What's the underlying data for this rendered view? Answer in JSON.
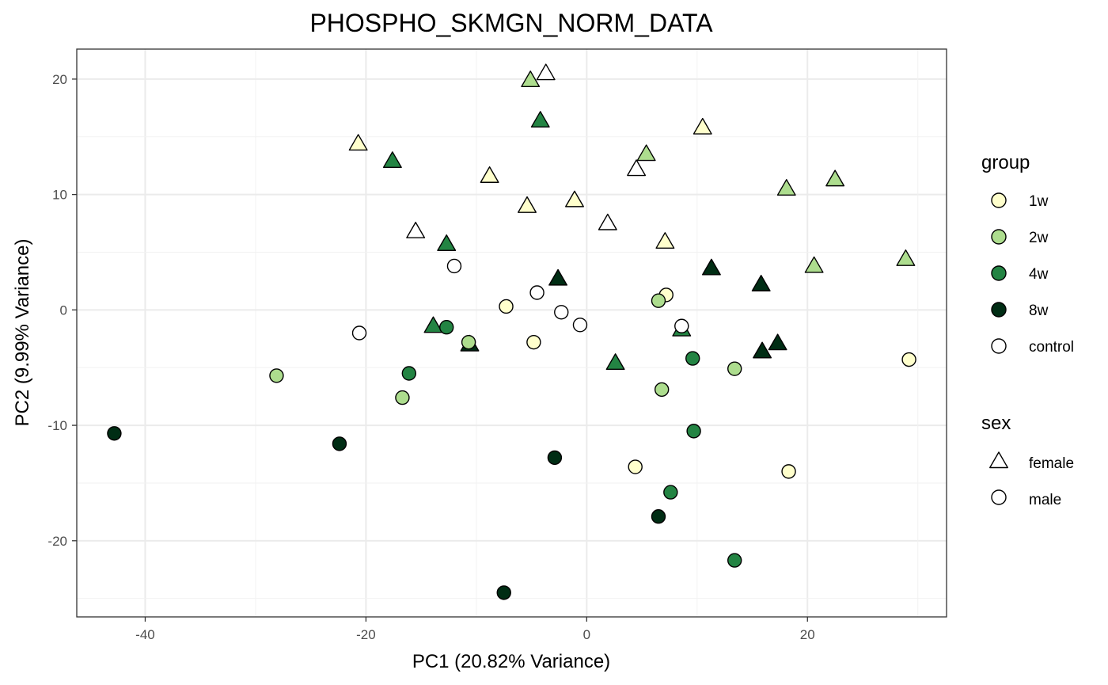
{
  "chart_data": {
    "type": "scatter",
    "title": "PHOSPHO_SKMGN_NORM_DATA",
    "xlabel": "PC1 (20.82% Variance)",
    "ylabel": "PC2 (9.99% Variance)",
    "xlim": [
      -46.2,
      32.6
    ],
    "ylim": [
      -26.6,
      22.6
    ],
    "x_ticks": [
      -40,
      -20,
      0,
      20
    ],
    "y_ticks": [
      -20,
      -10,
      0,
      10,
      20
    ],
    "x_tick_labels": [
      "-40",
      "-20",
      "0",
      "20"
    ],
    "y_tick_labels": [
      "-20",
      "-10",
      "0",
      "10",
      "20"
    ],
    "grid": true,
    "legend_position": "right",
    "legend": {
      "group": {
        "title": "group",
        "items": [
          {
            "key": "1w",
            "label": "1w",
            "color": "#ffffcc"
          },
          {
            "key": "2w",
            "label": "2w",
            "color": "#addd8e"
          },
          {
            "key": "4w",
            "label": "4w",
            "color": "#238443"
          },
          {
            "key": "8w",
            "label": "8w",
            "color": "#002d14"
          },
          {
            "key": "control",
            "label": "control",
            "color": "#ffffff"
          }
        ]
      },
      "sex": {
        "title": "sex",
        "items": [
          {
            "key": "female",
            "label": "female",
            "shape": "triangle"
          },
          {
            "key": "male",
            "label": "male",
            "shape": "circle"
          }
        ]
      }
    },
    "points": [
      {
        "x": -3.7,
        "y": 20.4,
        "group": "control",
        "sex": "female"
      },
      {
        "x": -5.1,
        "y": 19.8,
        "group": "2w",
        "sex": "female"
      },
      {
        "x": -4.2,
        "y": 16.3,
        "group": "4w",
        "sex": "female"
      },
      {
        "x": 10.5,
        "y": 15.7,
        "group": "1w",
        "sex": "female"
      },
      {
        "x": -20.7,
        "y": 14.3,
        "group": "1w",
        "sex": "female"
      },
      {
        "x": 5.4,
        "y": 13.4,
        "group": "2w",
        "sex": "female"
      },
      {
        "x": -17.6,
        "y": 12.8,
        "group": "4w",
        "sex": "female"
      },
      {
        "x": 4.5,
        "y": 12.1,
        "group": "control",
        "sex": "female"
      },
      {
        "x": -8.8,
        "y": 11.5,
        "group": "1w",
        "sex": "female"
      },
      {
        "x": 22.5,
        "y": 11.2,
        "group": "2w",
        "sex": "female"
      },
      {
        "x": 18.1,
        "y": 10.4,
        "group": "2w",
        "sex": "female"
      },
      {
        "x": -1.1,
        "y": 9.4,
        "group": "1w",
        "sex": "female"
      },
      {
        "x": -5.4,
        "y": 8.9,
        "group": "1w",
        "sex": "female"
      },
      {
        "x": 1.9,
        "y": 7.4,
        "group": "control",
        "sex": "female"
      },
      {
        "x": -15.5,
        "y": 6.7,
        "group": "control",
        "sex": "female"
      },
      {
        "x": 7.1,
        "y": 5.8,
        "group": "1w",
        "sex": "female"
      },
      {
        "x": -12.7,
        "y": 5.6,
        "group": "4w",
        "sex": "female"
      },
      {
        "x": 28.9,
        "y": 4.3,
        "group": "2w",
        "sex": "female"
      },
      {
        "x": 20.6,
        "y": 3.7,
        "group": "2w",
        "sex": "female"
      },
      {
        "x": 11.3,
        "y": 3.5,
        "group": "8w",
        "sex": "female"
      },
      {
        "x": -2.6,
        "y": 2.6,
        "group": "8w",
        "sex": "female"
      },
      {
        "x": 15.8,
        "y": 2.1,
        "group": "8w",
        "sex": "female"
      },
      {
        "x": -13.9,
        "y": -1.5,
        "group": "4w",
        "sex": "female"
      },
      {
        "x": 8.6,
        "y": -1.8,
        "group": "4w",
        "sex": "female"
      },
      {
        "x": 17.3,
        "y": -3.0,
        "group": "8w",
        "sex": "female"
      },
      {
        "x": -10.6,
        "y": -3.1,
        "group": "8w",
        "sex": "female"
      },
      {
        "x": 15.9,
        "y": -3.7,
        "group": "8w",
        "sex": "female"
      },
      {
        "x": 2.6,
        "y": -4.7,
        "group": "4w",
        "sex": "female"
      },
      {
        "x": -12.0,
        "y": 3.8,
        "group": "control",
        "sex": "male"
      },
      {
        "x": -4.5,
        "y": 1.5,
        "group": "control",
        "sex": "male"
      },
      {
        "x": -7.3,
        "y": 0.3,
        "group": "1w",
        "sex": "male"
      },
      {
        "x": 7.2,
        "y": 1.3,
        "group": "1w",
        "sex": "male"
      },
      {
        "x": 6.5,
        "y": 0.8,
        "group": "2w",
        "sex": "male"
      },
      {
        "x": -2.3,
        "y": -0.2,
        "group": "control",
        "sex": "male"
      },
      {
        "x": -0.6,
        "y": -1.3,
        "group": "control",
        "sex": "male"
      },
      {
        "x": 8.6,
        "y": -1.4,
        "group": "control",
        "sex": "male"
      },
      {
        "x": -12.7,
        "y": -1.5,
        "group": "4w",
        "sex": "male"
      },
      {
        "x": -20.6,
        "y": -2.0,
        "group": "control",
        "sex": "male"
      },
      {
        "x": -10.7,
        "y": -2.8,
        "group": "2w",
        "sex": "male"
      },
      {
        "x": -4.8,
        "y": -2.8,
        "group": "1w",
        "sex": "male"
      },
      {
        "x": 9.6,
        "y": -4.2,
        "group": "4w",
        "sex": "male"
      },
      {
        "x": 29.2,
        "y": -4.3,
        "group": "1w",
        "sex": "male"
      },
      {
        "x": 13.4,
        "y": -5.1,
        "group": "2w",
        "sex": "male"
      },
      {
        "x": -16.1,
        "y": -5.5,
        "group": "4w",
        "sex": "male"
      },
      {
        "x": -28.1,
        "y": -5.7,
        "group": "2w",
        "sex": "male"
      },
      {
        "x": 6.8,
        "y": -6.9,
        "group": "2w",
        "sex": "male"
      },
      {
        "x": -16.7,
        "y": -7.6,
        "group": "2w",
        "sex": "male"
      },
      {
        "x": 9.7,
        "y": -10.5,
        "group": "4w",
        "sex": "male"
      },
      {
        "x": -42.8,
        "y": -10.7,
        "group": "8w",
        "sex": "male"
      },
      {
        "x": -22.4,
        "y": -11.6,
        "group": "8w",
        "sex": "male"
      },
      {
        "x": -2.9,
        "y": -12.8,
        "group": "8w",
        "sex": "male"
      },
      {
        "x": 4.4,
        "y": -13.6,
        "group": "1w",
        "sex": "male"
      },
      {
        "x": 18.3,
        "y": -14.0,
        "group": "1w",
        "sex": "male"
      },
      {
        "x": 7.6,
        "y": -15.8,
        "group": "4w",
        "sex": "male"
      },
      {
        "x": 6.5,
        "y": -17.9,
        "group": "8w",
        "sex": "male"
      },
      {
        "x": 13.4,
        "y": -21.7,
        "group": "4w",
        "sex": "male"
      },
      {
        "x": -7.5,
        "y": -24.5,
        "group": "8w",
        "sex": "male"
      }
    ]
  }
}
